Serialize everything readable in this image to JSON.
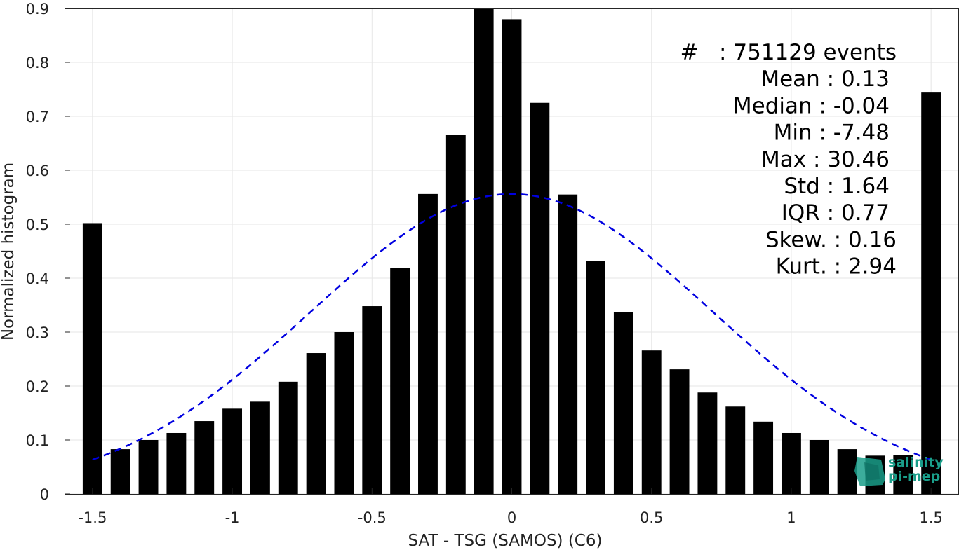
{
  "chart_data": {
    "type": "bar",
    "xlabel": "SAT - TSG (SAMOS) (C6)",
    "ylabel": "Normalized histogram",
    "xlim": [
      -1.6,
      1.6
    ],
    "ylim": [
      0,
      0.9
    ],
    "xticks": [
      -1.5,
      -1,
      -0.5,
      0,
      0.5,
      1,
      1.5
    ],
    "xtick_labels": [
      "-1.5",
      "-1",
      "-0.5",
      "0",
      "0.5",
      "1",
      "1.5"
    ],
    "yticks": [
      0,
      0.1,
      0.2,
      0.3,
      0.4,
      0.5,
      0.6,
      0.7,
      0.8,
      0.9
    ],
    "ytick_labels": [
      "0",
      "0.1",
      "0.2",
      "0.3",
      "0.4",
      "0.5",
      "0.6",
      "0.7",
      "0.8",
      "0.9"
    ],
    "grid": true,
    "bar_width": 0.07,
    "bar_color": "#000000",
    "bars": {
      "x": [
        -1.5,
        -1.4,
        -1.3,
        -1.2,
        -1.1,
        -1.0,
        -0.9,
        -0.8,
        -0.7,
        -0.6,
        -0.5,
        -0.4,
        -0.3,
        -0.2,
        -0.1,
        0.0,
        0.1,
        0.2,
        0.3,
        0.4,
        0.5,
        0.6,
        0.7,
        0.8,
        0.9,
        1.0,
        1.1,
        1.2,
        1.3,
        1.4,
        1.5
      ],
      "values": [
        0.502,
        0.083,
        0.1,
        0.113,
        0.135,
        0.158,
        0.171,
        0.208,
        0.261,
        0.3,
        0.348,
        0.419,
        0.556,
        0.665,
        0.902,
        0.88,
        0.725,
        0.555,
        0.432,
        0.337,
        0.266,
        0.231,
        0.188,
        0.162,
        0.134,
        0.113,
        0.1,
        0.083,
        0.071,
        0.072,
        0.744
      ]
    },
    "fit_curve": {
      "style": "dashed",
      "color": "#0000e0",
      "mean": 0.0,
      "std": 0.72,
      "peak": 0.556,
      "x_range": [
        -1.5,
        1.5
      ]
    },
    "annotations": [
      "#   : 751129 events",
      "Mean : 0.13",
      "Median : -0.04",
      "Min : -7.48",
      "Max : 30.46",
      "Std : 1.64",
      "IQR : 0.77",
      "Skew. : 0.16",
      "Kurt. : 2.94"
    ]
  },
  "logo": {
    "line1": "salinity",
    "line2": "pi-mep",
    "color": "#1a9e8a"
  }
}
